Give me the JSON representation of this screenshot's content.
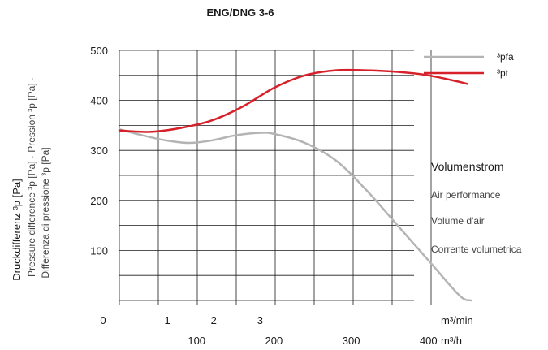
{
  "chart_data": {
    "type": "line",
    "title": "ENG/DNG 3-6",
    "ylabel": "Druckdifferenz ³p [Pa]",
    "ylabel_sub": [
      "Pressure difference ³p [Pa] · Pression ³p [Pa] ·",
      "Differenza di pressione ³p [Pa]"
    ],
    "ylim": [
      0,
      500
    ],
    "yticks": [
      "100",
      "200",
      "300",
      "400",
      "500"
    ],
    "origin_label": "0",
    "x_axes": [
      {
        "unit": "m³/min",
        "ticks": [
          "1",
          "2",
          "3"
        ],
        "values": [
          1,
          2,
          3
        ]
      },
      {
        "unit": "m³/h",
        "ticks": [
          "100",
          "200",
          "300",
          "400"
        ],
        "values": [
          100,
          200,
          300,
          400
        ]
      }
    ],
    "xlim_m3h": [
      0,
      475
    ],
    "grid": true,
    "legend_position": "top-right",
    "series": [
      {
        "name": "³pfa",
        "color": "#b4b4b4",
        "x": [
          0,
          30,
          60,
          90,
          120,
          150,
          180,
          200,
          240,
          280,
          320,
          360,
          400,
          440,
          455
        ],
        "y": [
          342,
          330,
          320,
          315,
          320,
          330,
          335,
          333,
          315,
          280,
          220,
          150,
          80,
          10,
          0
        ]
      },
      {
        "name": "³pt",
        "color": "#d6202a",
        "x": [
          0,
          40,
          80,
          120,
          160,
          200,
          240,
          280,
          320,
          360,
          400,
          440,
          450
        ],
        "y": [
          340,
          337,
          345,
          360,
          388,
          425,
          450,
          460,
          460,
          457,
          450,
          437,
          433
        ]
      }
    ],
    "side_labels": {
      "heading": "Volumenstrom",
      "items": [
        "Air performance",
        "Volume d'air",
        "Corrente volumetrica"
      ]
    }
  }
}
